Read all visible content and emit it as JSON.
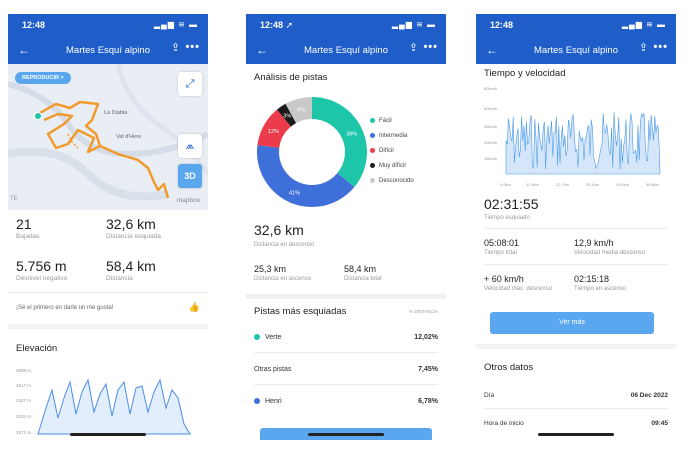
{
  "status": {
    "time1": "12:48",
    "time2": "12:48 ➚",
    "time3": "12:48",
    "icons": "▂▄▆ ≋ ▬"
  },
  "nav": {
    "back": "←",
    "title": "Martes Esquí alpino",
    "share": "⇪",
    "more": "•••"
  },
  "screen1": {
    "replay": "REPRODUCIR >",
    "places": [
      "La Diabla",
      "Val d'Here"
    ],
    "mapbox": "mapbox",
    "te": "TE",
    "btn_expand": "⤢",
    "btn_compass": "⩕",
    "btn_3d": "3D",
    "stats": [
      {
        "value": "21",
        "label": "Bajadas"
      },
      {
        "value": "32,6 km",
        "label": "Distancia esquiada"
      },
      {
        "value": "5.756 m",
        "label": "Desnivel negativo"
      },
      {
        "value": "58,4 km",
        "label": "Distancia"
      }
    ],
    "like_text": "¡Sé el primero en darle un me gusta!",
    "like_icon": "👍",
    "elevation_title": "Elevación",
    "elevation_ticks": [
      "2808 m",
      "2617 m",
      "2427 m",
      "2204 m",
      "1971 m"
    ]
  },
  "screen2": {
    "title": "Análisis de pistas",
    "chart_data": {
      "type": "pie",
      "categories": [
        "Fácil",
        "Intermedia",
        "Difícil",
        "Muy difícil",
        "Desconocido"
      ],
      "values": [
        36,
        41,
        12,
        3,
        8
      ],
      "labels": [
        "36%",
        "41%",
        "12%",
        "3%",
        "8%"
      ],
      "colors": [
        "#1ec6a9",
        "#3f6fd8",
        "#ec3b4a",
        "#1b1b1b",
        "#c9c9c9"
      ]
    },
    "distance_value": "32,6 km",
    "distance_label": "Distancia en descenso",
    "ascent_value": "25,3 km",
    "ascent_label": "Distancia en ascenso",
    "total_value": "58,4 km",
    "total_label": "Distancia total",
    "runs_title": "Pistas más esquiadas",
    "runs_header": "% DISTANCIA",
    "runs": [
      {
        "name": "Verte",
        "pct": "12,02%",
        "color": "#1ec6a9"
      },
      {
        "name": "Otras pistas",
        "pct": "7,45%",
        "color": ""
      },
      {
        "name": "Henri",
        "pct": "6,78%",
        "color": "#3f6fd8"
      }
    ]
  },
  "screen3": {
    "title": "Tiempo y velocidad",
    "y_ticks": [
      "80km/h",
      "60km/h",
      "45km/h",
      "30km/h",
      "15km/h"
    ],
    "x_ticks": [
      "0,0km",
      "11,9km",
      "22,7km",
      "35,1km",
      "45,9km",
      "56,8km"
    ],
    "time_value": "02:31:55",
    "time_label": "Tiempo esquiado",
    "pairs": [
      {
        "value": "05:08:01",
        "label": "Tiempo total"
      },
      {
        "value": "12,9 km/h",
        "label": "Velocidad media descenso"
      },
      {
        "value": "+ 60 km/h",
        "label": "Velocidad máx. descenso"
      },
      {
        "value": "02:15:18",
        "label": "Tiempo en ascenso"
      }
    ],
    "button": "Ver más",
    "other_title": "Otros datos",
    "rows": [
      {
        "label": "Día",
        "value": "06 Dec 2022"
      },
      {
        "label": "Hora de inicio",
        "value": "09:45"
      }
    ]
  }
}
